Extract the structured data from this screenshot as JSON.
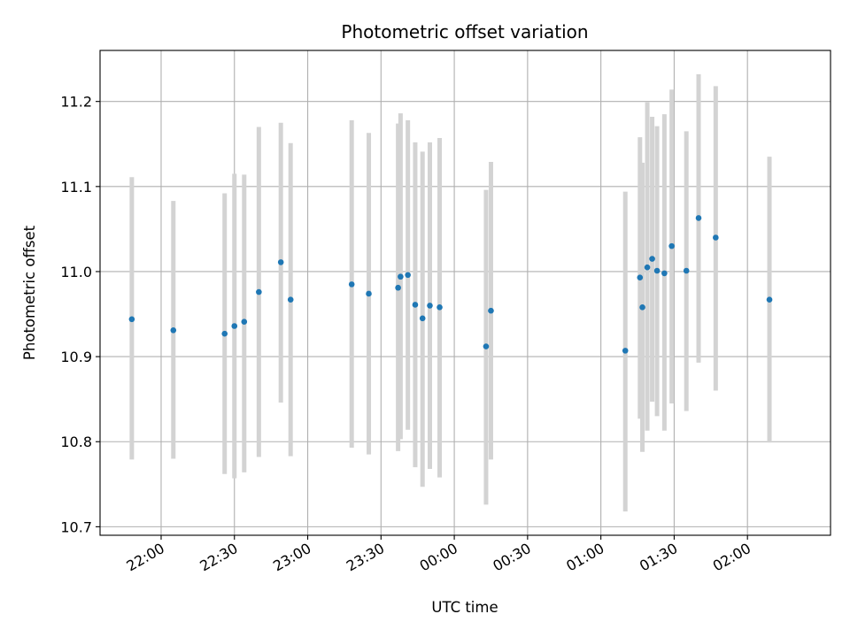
{
  "chart_data": {
    "type": "scatter",
    "title": "Photometric offset variation",
    "xlabel": "UTC time",
    "ylabel": "Photometric offset",
    "x_axis_type": "time",
    "x_range": [
      "21:35",
      "02:34"
    ],
    "ylim": [
      10.69,
      11.26
    ],
    "x_ticks": [
      {
        "value": "22:00",
        "label": "22:00"
      },
      {
        "value": "22:30",
        "label": "22:30"
      },
      {
        "value": "23:00",
        "label": "23:00"
      },
      {
        "value": "23:30",
        "label": "23:30"
      },
      {
        "value": "00:00",
        "label": "00:00"
      },
      {
        "value": "00:30",
        "label": "00:30"
      },
      {
        "value": "01:00",
        "label": "01:00"
      },
      {
        "value": "01:30",
        "label": "01:30"
      },
      {
        "value": "02:00",
        "label": "02:00"
      }
    ],
    "y_ticks": [
      {
        "value": 10.7,
        "label": "10.7"
      },
      {
        "value": 10.8,
        "label": "10.8"
      },
      {
        "value": 10.9,
        "label": "10.9"
      },
      {
        "value": 11.0,
        "label": "11.0"
      },
      {
        "value": 11.1,
        "label": "11.1"
      },
      {
        "value": 11.2,
        "label": "11.2"
      }
    ],
    "grid": true,
    "marker_color": "#1f77b4",
    "errorbar_color": "#d3d3d3",
    "points": [
      {
        "x": "21:48",
        "y": 10.944,
        "low": 10.779,
        "high": 11.111
      },
      {
        "x": "22:05",
        "y": 10.931,
        "low": 10.78,
        "high": 11.083
      },
      {
        "x": "22:26",
        "y": 10.927,
        "low": 10.762,
        "high": 11.092
      },
      {
        "x": "22:30",
        "y": 10.936,
        "low": 10.757,
        "high": 11.115
      },
      {
        "x": "22:34",
        "y": 10.941,
        "low": 10.764,
        "high": 11.114
      },
      {
        "x": "22:40",
        "y": 10.976,
        "low": 10.782,
        "high": 11.17
      },
      {
        "x": "22:49",
        "y": 11.011,
        "low": 10.846,
        "high": 11.175
      },
      {
        "x": "22:53",
        "y": 10.967,
        "low": 10.783,
        "high": 11.151
      },
      {
        "x": "23:18",
        "y": 10.985,
        "low": 10.793,
        "high": 11.178
      },
      {
        "x": "23:25",
        "y": 10.974,
        "low": 10.785,
        "high": 11.163
      },
      {
        "x": "23:37",
        "y": 10.981,
        "low": 10.789,
        "high": 11.174
      },
      {
        "x": "23:38",
        "y": 10.994,
        "low": 10.803,
        "high": 11.186
      },
      {
        "x": "23:41",
        "y": 10.996,
        "low": 10.814,
        "high": 11.178
      },
      {
        "x": "23:44",
        "y": 10.961,
        "low": 10.77,
        "high": 11.152
      },
      {
        "x": "23:47",
        "y": 10.945,
        "low": 10.747,
        "high": 11.141
      },
      {
        "x": "23:50",
        "y": 10.96,
        "low": 10.768,
        "high": 11.152
      },
      {
        "x": "23:54",
        "y": 10.958,
        "low": 10.758,
        "high": 11.157
      },
      {
        "x": "00:13",
        "y": 10.912,
        "low": 10.726,
        "high": 11.096
      },
      {
        "x": "00:15",
        "y": 10.954,
        "low": 10.779,
        "high": 11.129
      },
      {
        "x": "01:10",
        "y": 10.907,
        "low": 10.718,
        "high": 11.094
      },
      {
        "x": "01:16",
        "y": 10.993,
        "low": 10.827,
        "high": 11.158
      },
      {
        "x": "01:17",
        "y": 10.958,
        "low": 10.788,
        "high": 11.128
      },
      {
        "x": "01:19",
        "y": 11.005,
        "low": 10.813,
        "high": 11.199
      },
      {
        "x": "01:21",
        "y": 11.015,
        "low": 10.847,
        "high": 11.182
      },
      {
        "x": "01:23",
        "y": 11.001,
        "low": 10.83,
        "high": 11.171
      },
      {
        "x": "01:26",
        "y": 10.998,
        "low": 10.813,
        "high": 11.185
      },
      {
        "x": "01:29",
        "y": 11.03,
        "low": 10.845,
        "high": 11.214
      },
      {
        "x": "01:35",
        "y": 11.001,
        "low": 10.836,
        "high": 11.165
      },
      {
        "x": "01:40",
        "y": 11.063,
        "low": 10.893,
        "high": 11.232
      },
      {
        "x": "01:47",
        "y": 11.04,
        "low": 10.86,
        "high": 11.218
      },
      {
        "x": "02:09",
        "y": 10.967,
        "low": 10.799,
        "high": 11.135
      }
    ]
  }
}
